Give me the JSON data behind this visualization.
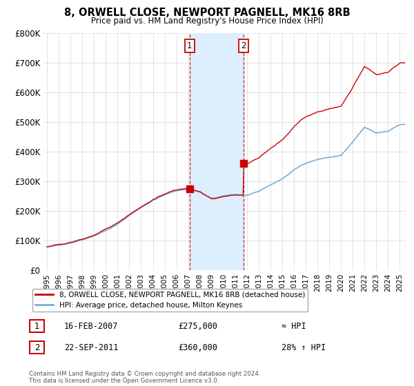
{
  "title": "8, ORWELL CLOSE, NEWPORT PAGNELL, MK16 8RB",
  "subtitle": "Price paid vs. HM Land Registry's House Price Index (HPI)",
  "legend_line1": "8, ORWELL CLOSE, NEWPORT PAGNELL, MK16 8RB (detached house)",
  "legend_line2": "HPI: Average price, detached house, Milton Keynes",
  "transaction1_date": "16-FEB-2007",
  "transaction1_price": "£275,000",
  "transaction1_hpi": "≈ HPI",
  "transaction1_year": 2007.12,
  "transaction1_value": 275000,
  "transaction2_date": "22-SEP-2011",
  "transaction2_price": "£360,000",
  "transaction2_hpi": "28% ↑ HPI",
  "transaction2_year": 2011.72,
  "transaction2_value": 360000,
  "footnote": "Contains HM Land Registry data © Crown copyright and database right 2024.\nThis data is licensed under the Open Government Licence v3.0.",
  "hpi_color": "#7aaed4",
  "price_color": "#cc0000",
  "highlight_color": "#ddeeff",
  "box_color": "#cc0000",
  "ylim": [
    0,
    800000
  ],
  "yticks": [
    0,
    100000,
    200000,
    300000,
    400000,
    500000,
    600000,
    700000,
    800000
  ],
  "xlim_start": 1994.7,
  "xlim_end": 2025.5
}
